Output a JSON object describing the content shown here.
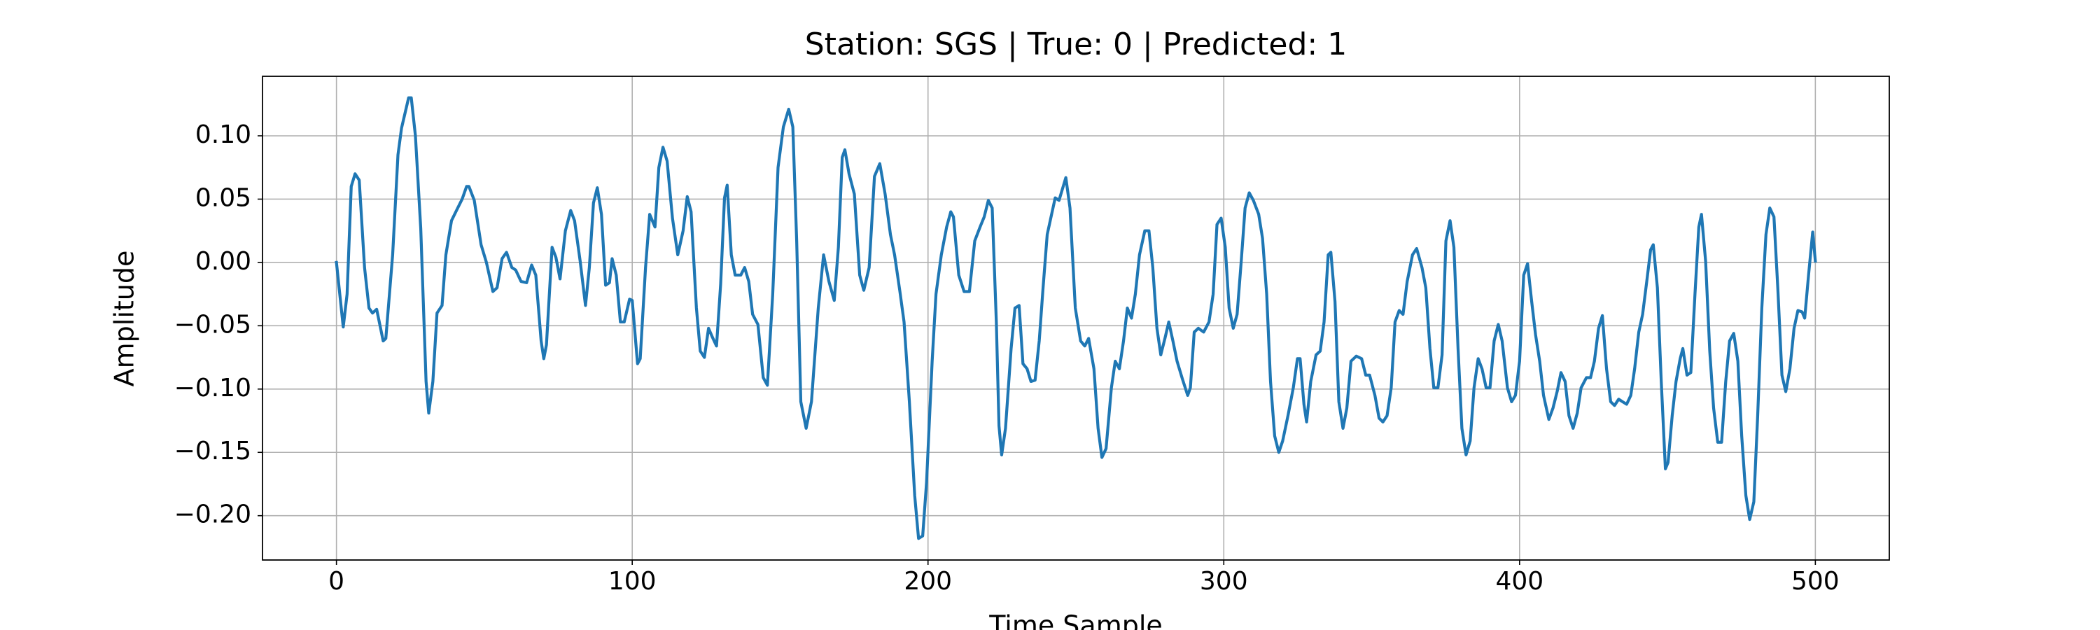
{
  "chart_data": {
    "type": "line",
    "title": "Station: SGS | True: 0 | Predicted: 1",
    "xlabel": "Time Sample",
    "ylabel": "Amplitude",
    "grid": true,
    "xlim": [
      -25,
      525
    ],
    "ylim": [
      -0.235,
      0.147
    ],
    "xticks": [
      0,
      100,
      200,
      300,
      400,
      500
    ],
    "yticks": [
      {
        "value": -0.2,
        "label": "−0.20"
      },
      {
        "value": -0.15,
        "label": "−0.15"
      },
      {
        "value": -0.1,
        "label": "−0.10"
      },
      {
        "value": -0.05,
        "label": "−0.05"
      },
      {
        "value": 0,
        "label": "0.00"
      },
      {
        "value": 0.05,
        "label": "0.05"
      },
      {
        "value": 0.1,
        "label": "0.10"
      }
    ],
    "x": [
      0,
      2.3,
      3.6,
      5,
      6.3,
      7.7,
      9.5,
      11,
      12.2,
      13.6,
      15.8,
      16.7,
      19,
      20.8,
      22,
      24.4,
      25.3,
      26.7,
      28.5,
      30.3,
      31.2,
      32.6,
      34,
      35.7,
      37,
      38.9,
      41,
      42.5,
      44,
      44.8,
      46.6,
      48.9,
      50.7,
      52.9,
      54.3,
      56,
      57.5,
      59.3,
      60.6,
      62.4,
      64.3,
      66,
      67.4,
      69.2,
      70.1,
      71,
      72.9,
      74.2,
      75.6,
      77.4,
      79.2,
      80.5,
      82.4,
      84.2,
      85.5,
      86.9,
      88.2,
      89.6,
      91,
      92.3,
      93.2,
      94.6,
      96,
      97.3,
      99.1,
      100,
      101.8,
      102.7,
      104.5,
      105.9,
      107.7,
      109,
      110.4,
      111.8,
      113.6,
      115.4,
      117.2,
      118.6,
      119.9,
      121.7,
      123,
      124.4,
      125.8,
      127.1,
      128.5,
      129.9,
      131.2,
      132.1,
      133.5,
      134.8,
      136.7,
      138,
      139.4,
      140.7,
      142.5,
      144.3,
      145.7,
      147.5,
      149.3,
      151.1,
      152.9,
      154.3,
      155.6,
      157,
      158.8,
      160.6,
      162.9,
      164.7,
      166.5,
      168.3,
      169.7,
      171,
      171.9,
      173.3,
      175.1,
      176.9,
      178.3,
      180.1,
      181.9,
      183.7,
      185.5,
      187.3,
      188.7,
      190.5,
      191.9,
      193.7,
      195.5,
      196.8,
      198.2,
      199.5,
      201.4,
      202.7,
      204.5,
      206.3,
      207.7,
      208.6,
      210.4,
      212.2,
      214,
      215.8,
      217.6,
      219,
      220.4,
      221.7,
      223.1,
      224,
      224.9,
      226.2,
      228.1,
      229.4,
      230.8,
      232.1,
      233.5,
      234.8,
      236.2,
      237.6,
      238.9,
      240.3,
      241.6,
      243,
      244.3,
      246.6,
      248,
      249.8,
      251.6,
      253,
      254.3,
      256.1,
      257.5,
      258.8,
      260.2,
      262,
      263.3,
      264.7,
      266.1,
      267.4,
      268.8,
      270.1,
      271.5,
      273.3,
      274.7,
      276,
      277.4,
      278.7,
      280.1,
      281.4,
      282.8,
      284.2,
      286,
      287.8,
      288.7,
      290,
      291.4,
      293.2,
      295,
      296.4,
      297.7,
      299.1,
      300.5,
      301.8,
      303.2,
      304.5,
      305.9,
      307.2,
      308.6,
      310,
      311.8,
      313.1,
      314.5,
      315.8,
      317.2,
      318.6,
      319.9,
      321.7,
      323.5,
      324.9,
      325.8,
      327.1,
      328,
      329.4,
      331.2,
      332.6,
      333.9,
      335.3,
      336.2,
      337.6,
      338.9,
      340.3,
      341.6,
      343,
      344.8,
      346.6,
      348,
      349.3,
      351.1,
      352.5,
      353.8,
      355.2,
      356.6,
      357.9,
      359.3,
      360.6,
      362,
      363.8,
      365.2,
      367,
      368.3,
      369.7,
      371,
      372.4,
      373.8,
      375.1,
      376.5,
      377.8,
      379.2,
      380.5,
      381.9,
      383.3,
      384.6,
      386,
      387.3,
      388.7,
      390,
      391.4,
      392.8,
      394.1,
      395.9,
      397.3,
      398.6,
      400,
      401.4,
      402.7,
      404.1,
      405.4,
      406.8,
      408.1,
      409.9,
      411.3,
      412.7,
      414,
      415.4,
      416.7,
      418.1,
      419.5,
      420.8,
      422.6,
      424,
      425.3,
      426.7,
      428,
      429.4,
      430.8,
      432.1,
      433.5,
      434.8,
      436.2,
      437.6,
      438.9,
      440.3,
      441.6,
      443,
      444.3,
      445.2,
      446.6,
      447.9,
      449.3,
      450.2,
      451.6,
      452.9,
      454.3,
      455.2,
      456.6,
      457.9,
      459.3,
      460.6,
      461.5,
      462.9,
      464.3,
      465.6,
      467,
      468.3,
      469.7,
      471,
      472.4,
      473.8,
      475.1,
      476.5,
      477.8,
      479.2,
      480.5,
      481.9,
      483.3,
      484.6,
      486,
      487.3,
      488.7,
      490,
      491.4,
      492.8,
      494.1,
      495.5,
      496.4,
      497.7,
      499.1,
      500
    ],
    "series": [
      {
        "color": "#1f77b4",
        "values": [
          0,
          -0.051,
          -0.025,
          0.06,
          0.07,
          0.065,
          -0.004,
          -0.036,
          -0.04,
          -0.037,
          -0.062,
          -0.06,
          0.006,
          0.085,
          0.106,
          0.13,
          0.13,
          0.1,
          0.027,
          -0.094,
          -0.119,
          -0.094,
          -0.04,
          -0.034,
          0.006,
          0.033,
          0.043,
          0.05,
          0.06,
          0.06,
          0.049,
          0.014,
          0,
          -0.023,
          -0.02,
          0.003,
          0.008,
          -0.004,
          -0.006,
          -0.015,
          -0.016,
          -0.002,
          -0.01,
          -0.062,
          -0.076,
          -0.065,
          0.012,
          0.004,
          -0.013,
          0.025,
          0.041,
          0.033,
          0.001,
          -0.034,
          -0.004,
          0.047,
          0.059,
          0.038,
          -0.018,
          -0.016,
          0.003,
          -0.01,
          -0.047,
          -0.047,
          -0.029,
          -0.03,
          -0.08,
          -0.076,
          -0.004,
          0.038,
          0.028,
          0.075,
          0.091,
          0.08,
          0.035,
          0.006,
          0.025,
          0.052,
          0.04,
          -0.036,
          -0.07,
          -0.075,
          -0.052,
          -0.059,
          -0.066,
          -0.017,
          0.051,
          0.061,
          0.006,
          -0.01,
          -0.01,
          -0.004,
          -0.015,
          -0.041,
          -0.049,
          -0.091,
          -0.097,
          -0.025,
          0.075,
          0.107,
          0.121,
          0.107,
          0.017,
          -0.11,
          -0.131,
          -0.11,
          -0.036,
          0.006,
          -0.015,
          -0.03,
          0.012,
          0.083,
          0.089,
          0.07,
          0.054,
          -0.01,
          -0.022,
          -0.004,
          0.068,
          0.078,
          0.054,
          0.022,
          0.006,
          -0.023,
          -0.047,
          -0.11,
          -0.184,
          -0.218,
          -0.216,
          -0.174,
          -0.078,
          -0.025,
          0.006,
          0.028,
          0.04,
          0.036,
          -0.01,
          -0.023,
          -0.023,
          0.017,
          0.028,
          0.036,
          0.049,
          0.043,
          -0.047,
          -0.129,
          -0.152,
          -0.131,
          -0.068,
          -0.036,
          -0.034,
          -0.08,
          -0.084,
          -0.094,
          -0.093,
          -0.062,
          -0.02,
          0.022,
          0.036,
          0.051,
          0.049,
          0.067,
          0.043,
          -0.036,
          -0.062,
          -0.066,
          -0.06,
          -0.084,
          -0.131,
          -0.154,
          -0.147,
          -0.099,
          -0.078,
          -0.084,
          -0.062,
          -0.036,
          -0.044,
          -0.025,
          0.006,
          0.025,
          0.025,
          -0.004,
          -0.052,
          -0.073,
          -0.06,
          -0.047,
          -0.062,
          -0.078,
          -0.092,
          -0.105,
          -0.099,
          -0.055,
          -0.052,
          -0.055,
          -0.047,
          -0.025,
          0.03,
          0.035,
          0.012,
          -0.036,
          -0.052,
          -0.041,
          0.001,
          0.043,
          0.055,
          0.049,
          0.038,
          0.019,
          -0.025,
          -0.094,
          -0.137,
          -0.15,
          -0.141,
          -0.121,
          -0.099,
          -0.076,
          -0.076,
          -0.112,
          -0.126,
          -0.094,
          -0.073,
          -0.07,
          -0.047,
          0.006,
          0.008,
          -0.031,
          -0.11,
          -0.131,
          -0.115,
          -0.078,
          -0.074,
          -0.076,
          -0.089,
          -0.089,
          -0.105,
          -0.123,
          -0.126,
          -0.121,
          -0.099,
          -0.047,
          -0.038,
          -0.041,
          -0.015,
          0.006,
          0.011,
          -0.004,
          -0.02,
          -0.068,
          -0.099,
          -0.099,
          -0.073,
          0.017,
          0.033,
          0.012,
          -0.068,
          -0.131,
          -0.152,
          -0.141,
          -0.099,
          -0.076,
          -0.084,
          -0.099,
          -0.099,
          -0.062,
          -0.049,
          -0.062,
          -0.099,
          -0.11,
          -0.105,
          -0.078,
          -0.01,
          -0.001,
          -0.031,
          -0.057,
          -0.078,
          -0.105,
          -0.124,
          -0.115,
          -0.102,
          -0.087,
          -0.094,
          -0.121,
          -0.131,
          -0.119,
          -0.099,
          -0.091,
          -0.091,
          -0.078,
          -0.052,
          -0.042,
          -0.084,
          -0.11,
          -0.113,
          -0.108,
          -0.11,
          -0.112,
          -0.105,
          -0.084,
          -0.055,
          -0.041,
          -0.015,
          0.01,
          0.014,
          -0.02,
          -0.094,
          -0.163,
          -0.158,
          -0.121,
          -0.094,
          -0.076,
          -0.068,
          -0.089,
          -0.087,
          -0.025,
          0.028,
          0.038,
          0.001,
          -0.07,
          -0.115,
          -0.142,
          -0.142,
          -0.094,
          -0.062,
          -0.056,
          -0.078,
          -0.137,
          -0.184,
          -0.203,
          -0.189,
          -0.121,
          -0.036,
          0.022,
          0.043,
          0.036,
          -0.02,
          -0.089,
          -0.102,
          -0.084,
          -0.052,
          -0.038,
          -0.039,
          -0.044,
          -0.01,
          0.024,
          0.001
        ]
      }
    ]
  }
}
